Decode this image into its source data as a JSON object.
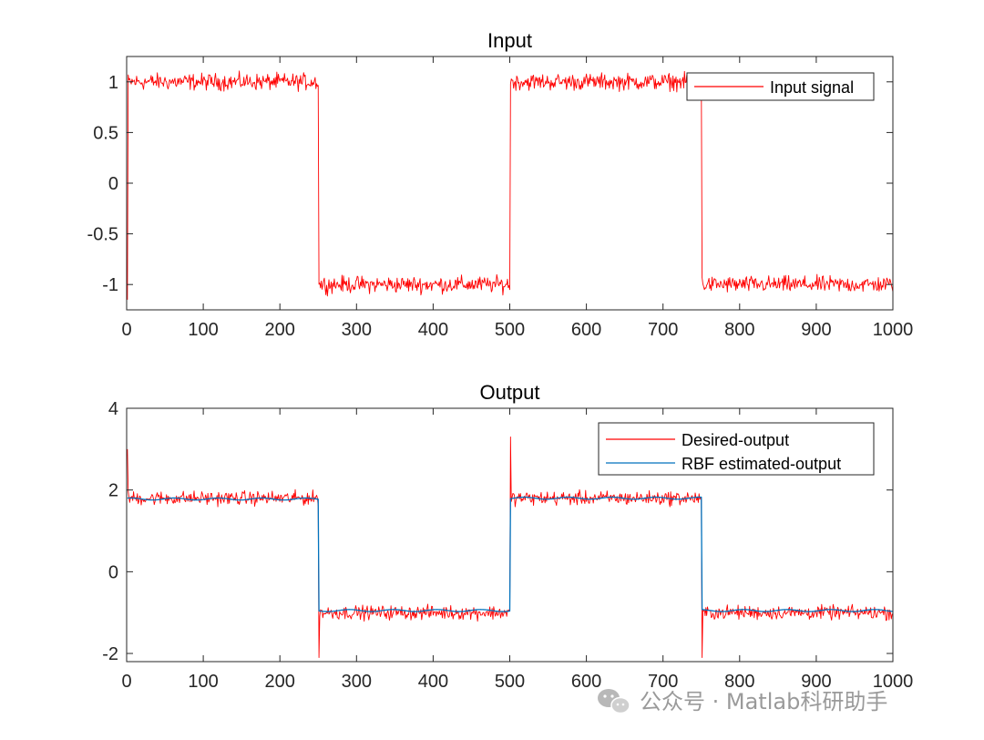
{
  "chart_data": [
    {
      "type": "line",
      "title": "Input",
      "xlabel": "",
      "ylabel": "",
      "xlim": [
        0,
        1000
      ],
      "ylim": [
        -1.25,
        1.25
      ],
      "xticks": [
        0,
        100,
        200,
        300,
        400,
        500,
        600,
        700,
        800,
        900,
        1000
      ],
      "yticks": [
        1,
        0.5,
        0,
        -0.5,
        -1
      ],
      "ytick_labels": [
        "1",
        "0.5",
        "0",
        "-0.5",
        "-1"
      ],
      "legend_position": "top-right",
      "series": [
        {
          "name": "Input signal",
          "color": "#ff0000",
          "segments": [
            {
              "from": 1,
              "to": 250,
              "level": 1.0
            },
            {
              "from": 251,
              "to": 500,
              "level": -1.0
            },
            {
              "from": 501,
              "to": 750,
              "level": 1.0
            },
            {
              "from": 751,
              "to": 1000,
              "level": -1.0
            }
          ],
          "noise_amplitude": 0.12,
          "initial_value": -1.15
        }
      ]
    },
    {
      "type": "line",
      "title": "Output",
      "xlabel": "",
      "ylabel": "",
      "xlim": [
        0,
        1000
      ],
      "ylim": [
        -2.2,
        4
      ],
      "xticks": [
        0,
        100,
        200,
        300,
        400,
        500,
        600,
        700,
        800,
        900,
        1000
      ],
      "yticks": [
        4,
        2,
        0,
        -2
      ],
      "ytick_labels": [
        "4",
        "2",
        "0",
        "-2"
      ],
      "legend_position": "top-right",
      "series": [
        {
          "name": "Desired-output",
          "color": "#ff0000",
          "segments": [
            {
              "from": 1,
              "to": 250,
              "level": 1.8
            },
            {
              "from": 251,
              "to": 500,
              "level": -1.0
            },
            {
              "from": 501,
              "to": 750,
              "level": 1.8
            },
            {
              "from": 751,
              "to": 1000,
              "level": -1.0
            }
          ],
          "noise_amplitude": 0.25,
          "spikes": [
            {
              "x": 1,
              "y": 3.0
            },
            {
              "x": 251,
              "y": -2.1
            },
            {
              "x": 501,
              "y": 3.3
            },
            {
              "x": 751,
              "y": -2.1
            }
          ]
        },
        {
          "name": "RBF estimated-output",
          "color": "#0072bd",
          "segments": [
            {
              "from": 1,
              "to": 250,
              "level": 1.78
            },
            {
              "from": 251,
              "to": 500,
              "level": -0.95
            },
            {
              "from": 501,
              "to": 750,
              "level": 1.8
            },
            {
              "from": 751,
              "to": 1000,
              "level": -0.95
            }
          ]
        }
      ]
    }
  ],
  "watermark": {
    "icon": "wechat-icon",
    "text": "公众号 · Matlab科研助手"
  }
}
